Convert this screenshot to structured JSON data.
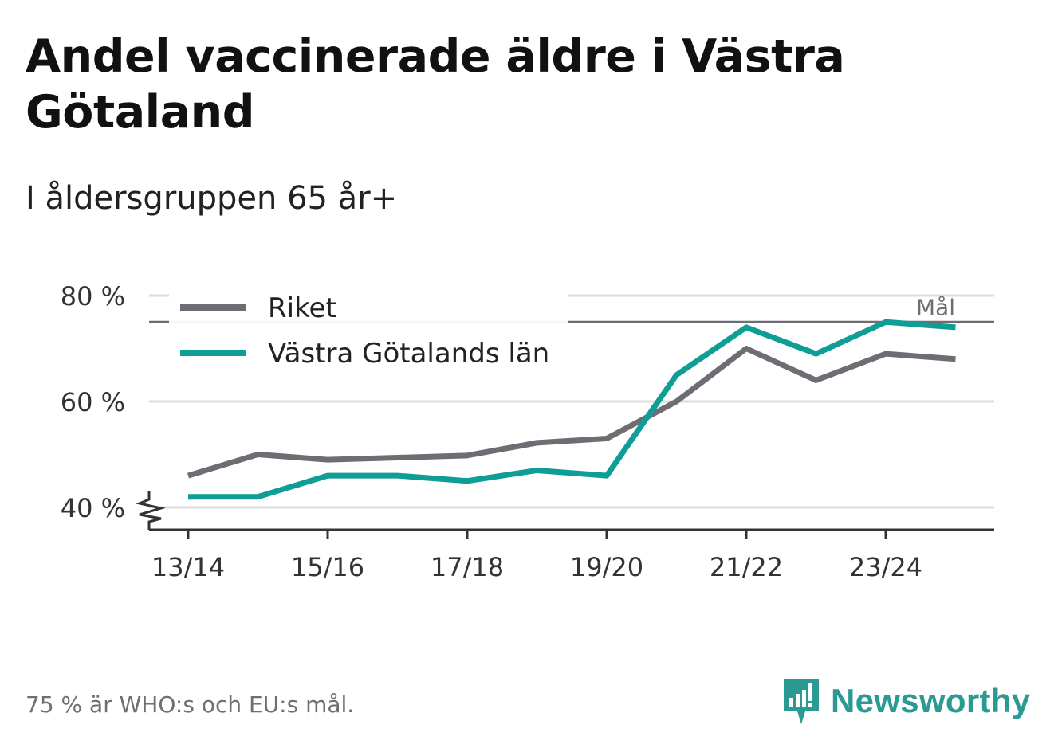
{
  "header": {
    "title": "Andel vaccinerade äldre i Västra Götaland",
    "subtitle": "I åldersgruppen 65 år+"
  },
  "footer": {
    "note": "75 % är WHO:s och EU:s mål.",
    "brand": "Newsworthy"
  },
  "colors": {
    "riket": "#6e6d73",
    "vg": "#0f9e96",
    "grid": "#dcdcdc",
    "goal": "#6e6d73",
    "axis": "#333333",
    "brand": "#2a9a93"
  },
  "chart_data": {
    "type": "line",
    "title": "Andel vaccinerade äldre i Västra Götaland",
    "subtitle": "I åldersgruppen 65 år+",
    "x": [
      "13/14",
      "14/15",
      "15/16",
      "16/17",
      "17/18",
      "18/19",
      "19/20",
      "20/21",
      "21/22",
      "22/23",
      "23/24",
      "24/25"
    ],
    "x_tick_labels": [
      "13/14",
      "15/16",
      "17/18",
      "19/20",
      "21/22",
      "23/24"
    ],
    "y_ticks": [
      40,
      60,
      80
    ],
    "y_tick_labels": [
      "40 %",
      "60 %",
      "80 %"
    ],
    "ylim": [
      40,
      80
    ],
    "y_axis_break": true,
    "grid": true,
    "legend_position": "top-left",
    "series": [
      {
        "name": "Riket",
        "color_key": "riket",
        "values": [
          46,
          50,
          49,
          49.4,
          49.8,
          52.2,
          53,
          60,
          70,
          64,
          69,
          68
        ]
      },
      {
        "name": "Västra Götalands län",
        "color_key": "vg",
        "values": [
          42,
          42,
          46,
          46,
          45,
          47,
          46,
          65,
          74,
          69,
          75,
          74
        ]
      }
    ],
    "reference_line": {
      "value": 75,
      "label": "Mål"
    }
  }
}
